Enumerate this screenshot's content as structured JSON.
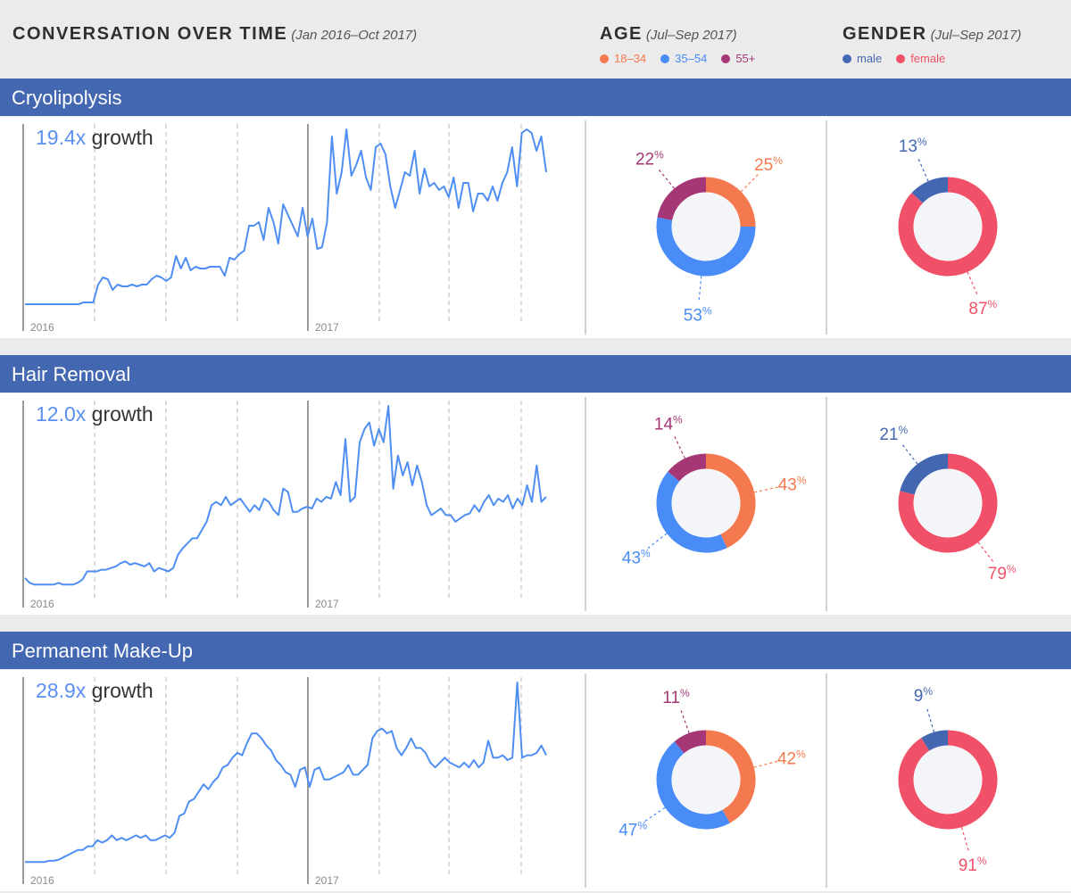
{
  "header": {
    "conversation_title": "CONVERSATION OVER TIME",
    "conversation_range": "(Jan 2016–Oct 2017)",
    "age_title": "AGE",
    "age_range": "(Jul–Sep 2017)",
    "gender_title": "GENDER",
    "gender_range": "(Jul–Sep 2017)"
  },
  "legend": {
    "age": [
      {
        "label": "18–34",
        "color": "#f5794f"
      },
      {
        "label": "35–54",
        "color": "#4a8cf7"
      },
      {
        "label": "55+",
        "color": "#a53777"
      }
    ],
    "gender": [
      {
        "label": "male",
        "color": "#4467b2"
      },
      {
        "label": "female",
        "color": "#f05068"
      }
    ]
  },
  "colors": {
    "line": "#4f8ef2",
    "band": "#4467b2",
    "age_18_34": "#f5794f",
    "age_35_54": "#4a8cf7",
    "age_55_plus": "#a53777",
    "male": "#4467b2",
    "female": "#f05068"
  },
  "sections": [
    {
      "title": "Cryolipolysis",
      "growth_value": "19.4x",
      "growth_word": "growth",
      "year_labels": [
        "2016",
        "2017"
      ],
      "age_pct": {
        "a18_34": "25",
        "a35_54": "53",
        "a55_plus": "22"
      },
      "gender_pct": {
        "male": "13",
        "female": "87"
      }
    },
    {
      "title": "Hair Removal",
      "growth_value": "12.0x",
      "growth_word": "growth",
      "year_labels": [
        "2016",
        "2017"
      ],
      "age_pct": {
        "a18_34": "43",
        "a35_54": "43",
        "a55_plus": "14"
      },
      "gender_pct": {
        "male": "21",
        "female": "79"
      }
    },
    {
      "title": "Permanent Make-Up",
      "growth_value": "28.9x",
      "growth_word": "growth",
      "year_labels": [
        "2016",
        "2017"
      ],
      "age_pct": {
        "a18_34": "42",
        "a35_54": "47",
        "a55_plus": "11"
      },
      "gender_pct": {
        "male": "9",
        "female": "91"
      }
    }
  ],
  "chart_data": [
    {
      "type": "line",
      "title": "Cryolipolysis",
      "x_range": [
        "Jan 2016",
        "Oct 2017"
      ],
      "values": [
        4,
        4,
        4,
        4,
        4,
        4,
        4,
        4,
        4,
        4,
        4,
        4,
        5,
        5,
        5,
        15,
        19,
        18,
        12,
        15,
        14,
        14,
        15,
        14,
        15,
        15,
        18,
        20,
        19,
        17,
        19,
        31,
        24,
        30,
        23,
        25,
        24,
        24,
        25,
        25,
        25,
        20,
        30,
        29,
        32,
        34,
        48,
        48,
        50,
        40,
        58,
        50,
        38,
        60,
        54,
        48,
        42,
        58,
        42,
        52,
        35,
        36,
        50,
        98,
        66,
        78,
        102,
        76,
        82,
        90,
        75,
        68,
        92,
        94,
        88,
        70,
        58,
        68,
        78,
        76,
        90,
        66,
        80,
        70,
        72,
        68,
        70,
        64,
        75,
        58,
        72,
        72,
        56,
        66,
        66,
        62,
        70,
        62,
        72,
        78,
        92,
        70,
        100,
        102,
        100,
        90,
        98,
        78
      ]
    },
    {
      "type": "pie",
      "title": "Cryolipolysis age",
      "categories": [
        "18–34",
        "35–54",
        "55+"
      ],
      "values": [
        25,
        53,
        22
      ]
    },
    {
      "type": "pie",
      "title": "Cryolipolysis gender",
      "categories": [
        "male",
        "female"
      ],
      "values": [
        13,
        87
      ]
    },
    {
      "type": "line",
      "title": "Hair Removal",
      "x_range": [
        "Jan 2016",
        "Oct 2017"
      ],
      "values": [
        6,
        3,
        2,
        2,
        2,
        2,
        2,
        3,
        2,
        2,
        2,
        3,
        5,
        10,
        10,
        10,
        11,
        11,
        12,
        13,
        15,
        16,
        14,
        15,
        14,
        13,
        15,
        10,
        12,
        11,
        10,
        12,
        20,
        24,
        27,
        30,
        30,
        35,
        40,
        50,
        52,
        50,
        55,
        50,
        52,
        54,
        50,
        46,
        50,
        47,
        54,
        52,
        47,
        44,
        60,
        58,
        46,
        46,
        48,
        49,
        48,
        54,
        52,
        55,
        54,
        64,
        56,
        90,
        52,
        55,
        88,
        96,
        100,
        86,
        96,
        88,
        110,
        60,
        80,
        68,
        76,
        62,
        74,
        64,
        50,
        44,
        46,
        48,
        44,
        44,
        40,
        42,
        44,
        45,
        50,
        46,
        52,
        56,
        50,
        54,
        52,
        56,
        48,
        54,
        50,
        62,
        52,
        74,
        52,
        55
      ]
    },
    {
      "type": "pie",
      "title": "Hair Removal age",
      "categories": [
        "18–34",
        "35–54",
        "55+"
      ],
      "values": [
        43,
        43,
        14
      ]
    },
    {
      "type": "pie",
      "title": "Hair Removal gender",
      "categories": [
        "male",
        "female"
      ],
      "values": [
        21,
        79
      ]
    },
    {
      "type": "line",
      "title": "Permanent Make-Up",
      "x_range": [
        "Jan 2016",
        "Oct 2017"
      ],
      "values": [
        2,
        2,
        2,
        2,
        2,
        3,
        3,
        4,
        6,
        8,
        10,
        12,
        12,
        15,
        15,
        20,
        18,
        20,
        24,
        20,
        22,
        20,
        22,
        24,
        22,
        24,
        20,
        20,
        22,
        24,
        22,
        26,
        40,
        42,
        52,
        54,
        60,
        66,
        62,
        68,
        72,
        80,
        82,
        88,
        92,
        90,
        100,
        108,
        108,
        104,
        98,
        94,
        86,
        82,
        76,
        74,
        64,
        78,
        80,
        64,
        78,
        80,
        70,
        70,
        72,
        74,
        76,
        82,
        74,
        74,
        78,
        82,
        104,
        110,
        112,
        108,
        110,
        96,
        90,
        96,
        104,
        96,
        96,
        92,
        84,
        80,
        84,
        88,
        84,
        82,
        80,
        84,
        80,
        86,
        80,
        84,
        102,
        88,
        88,
        90,
        86,
        88,
        150,
        88,
        90,
        90,
        92,
        98,
        90
      ]
    },
    {
      "type": "pie",
      "title": "Permanent Make-Up age",
      "categories": [
        "18–34",
        "35–54",
        "55+"
      ],
      "values": [
        42,
        47,
        11
      ]
    },
    {
      "type": "pie",
      "title": "Permanent Make-Up gender",
      "categories": [
        "male",
        "female"
      ],
      "values": [
        9,
        91
      ]
    }
  ]
}
